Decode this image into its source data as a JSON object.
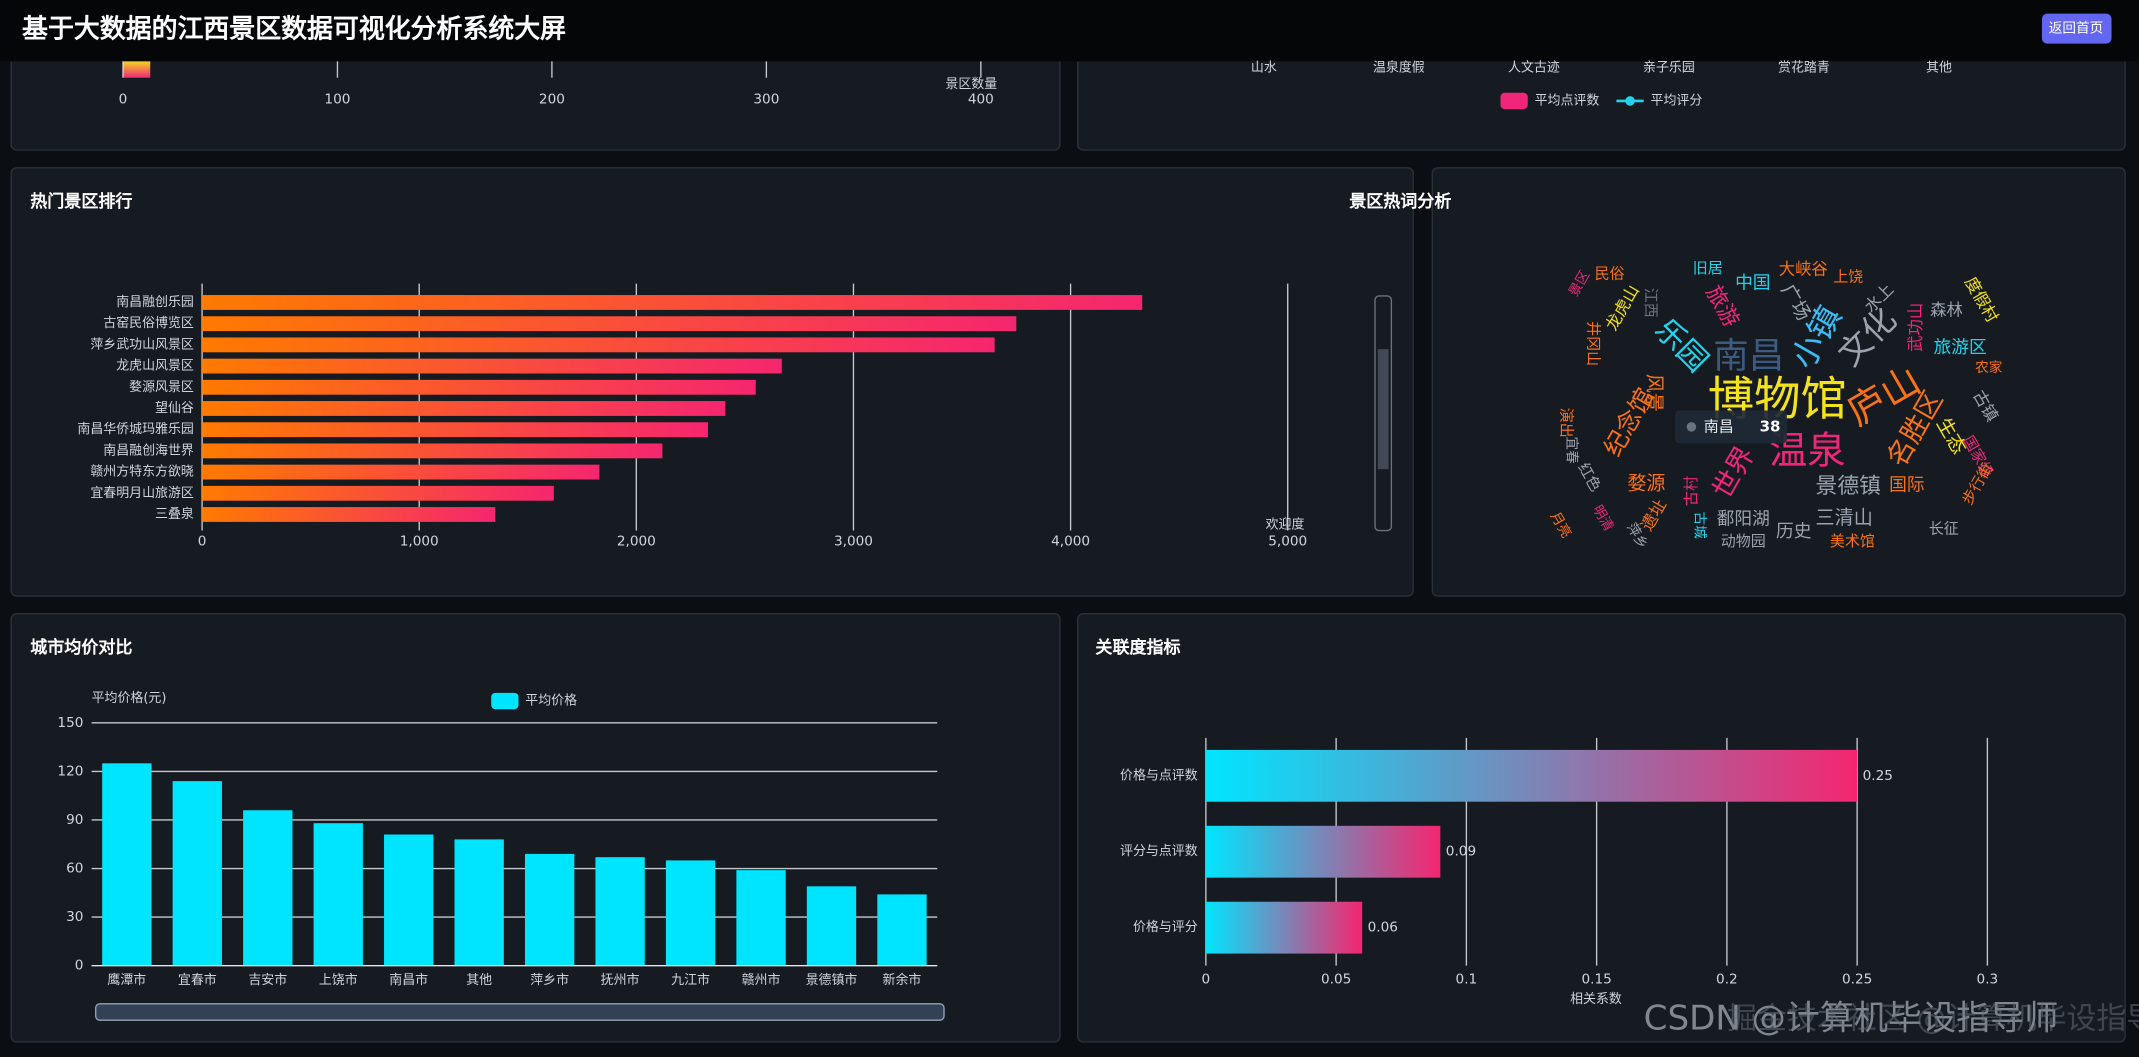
{
  "header": {
    "title": "基于大数据的江西景区数据可视化分析系统大屏",
    "button": "返回首页"
  },
  "chart_data": [
    {
      "type": "bar",
      "orientation": "horizontal",
      "xlabel": "景区数量",
      "xlim": [
        0,
        400
      ],
      "xticks": [
        0,
        100,
        200,
        300,
        400
      ],
      "grid": true
    },
    {
      "type": "bar",
      "categories": [
        "山水",
        "温泉度假",
        "人文古迹",
        "亲子乐园",
        "赏花踏青",
        "其他"
      ],
      "series": [
        {
          "name": "平均点评数",
          "color": "#f0267a",
          "type": "bar"
        },
        {
          "name": "平均评分",
          "color": "#22d3ee",
          "type": "line"
        }
      ]
    },
    {
      "type": "bar",
      "orientation": "horizontal",
      "title": "热门景区排行",
      "categories": [
        "南昌融创乐园",
        "古窑民俗博览区",
        "萍乡武功山风景区",
        "龙虎山风景区",
        "婺源风景区",
        "望仙谷",
        "南昌华侨城玛雅乐园",
        "南昌融创海世界",
        "赣州方特东方欲晓",
        "宜春明月山旅游区",
        "三叠泉"
      ],
      "values": [
        4330,
        3750,
        3650,
        2670,
        2550,
        2410,
        2330,
        2120,
        1830,
        1620,
        1350
      ],
      "colors": [
        "#ff7a00",
        "#f5266f"
      ],
      "xlabel": "欢迎度",
      "xlim": [
        0,
        5000
      ],
      "xticks": [
        0,
        {
          "value": 1000,
          "label": "1,000"
        },
        {
          "value": 2000,
          "label": "2,000"
        },
        {
          "value": 3000,
          "label": "3,000"
        },
        {
          "value": 4000,
          "label": "4,000"
        },
        {
          "value": 5000,
          "label": "5,000"
        }
      ],
      "grid": true
    },
    {
      "type": "bar",
      "title": "城市均价对比",
      "ylabel": "平均价格(元)",
      "categories": [
        "鹰潭市",
        "宜春市",
        "吉安市",
        "上饶市",
        "南昌市",
        "其他",
        "萍乡市",
        "抚州市",
        "九江市",
        "赣州市",
        "景德镇市",
        "新余市"
      ],
      "series": [
        {
          "name": "平均价格",
          "color": "#00e5ff",
          "values": [
            125,
            114,
            96,
            88,
            81,
            78,
            69,
            67,
            65,
            59,
            49,
            44
          ]
        }
      ],
      "ylim": [
        0,
        150
      ],
      "yticks": [
        0,
        30,
        60,
        90,
        120,
        150
      ],
      "grid": true
    },
    {
      "type": "bar",
      "orientation": "horizontal",
      "title": "关联度指标",
      "categories": [
        "价格与点评数",
        "评分与点评数",
        "价格与评分"
      ],
      "values": [
        0.25,
        0.09,
        0.06
      ],
      "colors": [
        "#00e5ff",
        "#f5266f"
      ],
      "data_labels": true,
      "xlabel": "相关系数",
      "xlim": [
        0,
        0.3
      ],
      "xticks": [
        0,
        0.05,
        0.1,
        0.15,
        0.2,
        0.25,
        0.3
      ],
      "grid": true
    }
  ],
  "word_cloud": {
    "title": "景区热词分析",
    "words": [
      "博物馆",
      "南昌",
      "庐山",
      "温泉",
      "小镇",
      "文化",
      "乐园",
      "世界",
      "名胜区",
      "景德镇",
      "纪念馆",
      "婺源",
      "三清山",
      "鄱阳湖",
      "历史",
      "动物园",
      "美术馆",
      "旅游区",
      "森林",
      "度假村",
      "武功山",
      "古镇",
      "生态",
      "国家级",
      "步行街",
      "长征",
      "国际",
      "中国",
      "大峡谷",
      "上饶",
      "旧居",
      "民俗",
      "龙虎山",
      "旅游",
      "广场",
      "水上",
      "江西",
      "井冈山",
      "风景",
      "演出",
      "遗址",
      "古村",
      "明清",
      "月亮",
      "萍乡",
      "红色",
      "农家",
      "古城",
      "宜春",
      "景区"
    ],
    "tooltip": {
      "name": "南昌",
      "value": 38
    }
  },
  "watermarks": [
    "CSDN @计算机毕设指导师",
    "掘金技术社区 @计算机毕设指导师"
  ]
}
